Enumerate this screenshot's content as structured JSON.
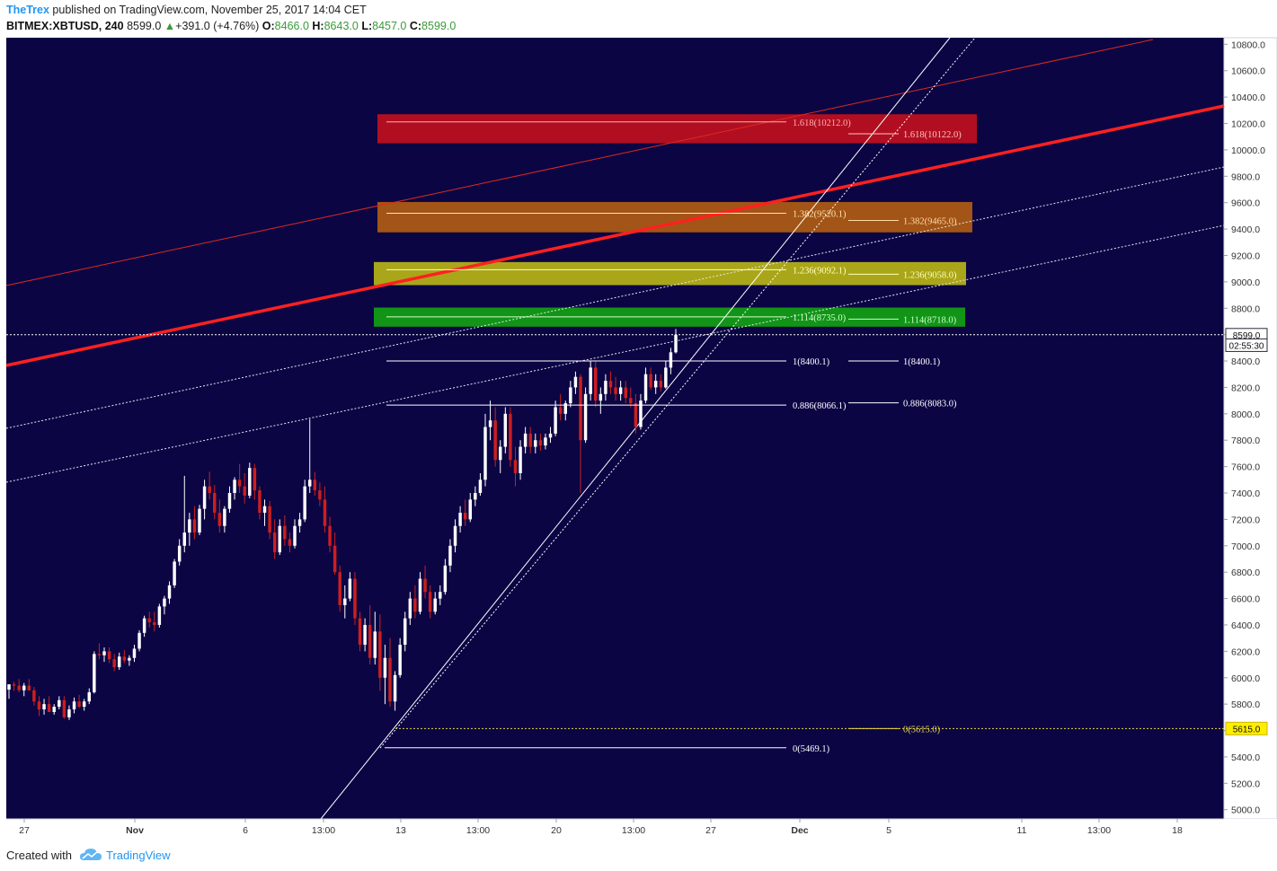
{
  "header": {
    "author": "TheTrex",
    "published_text": "published on TradingView.com, November 25, 2017 14:04 CET",
    "symbol": "BITMEX:XBTUSD, 240",
    "last": "8599.0",
    "change_arrow": "▲",
    "change": "+391.0 (+4.76%)",
    "open_label": "O:",
    "open": "8466.0",
    "high_label": "H:",
    "high": "8643.0",
    "low_label": "L:",
    "low": "8457.0",
    "close_label": "C:",
    "close": "8599.0"
  },
  "footer": {
    "created_with": "Created with",
    "brand": "TradingView",
    "logo_icon": "tradingview-cloud-icon"
  },
  "chart_data": {
    "type": "candlestick",
    "symbol": "BITMEX:XBTUSD",
    "interval": "240",
    "background_color": "#0b0544",
    "bull_color": "#ffffff",
    "bear_color": "#cc1f1f",
    "y_axis": {
      "position": "right",
      "ticks": [
        5000.0,
        5200.0,
        5400.0,
        5600.0,
        5800.0,
        6000.0,
        6200.0,
        6400.0,
        6600.0,
        6800.0,
        7000.0,
        7200.0,
        7400.0,
        7600.0,
        7800.0,
        8000.0,
        8200.0,
        8400.0,
        8600.0,
        8800.0,
        9000.0,
        9200.0,
        9400.0,
        9600.0,
        9800.0,
        10000.0,
        10200.0,
        10400.0,
        10600.0,
        10800.0
      ],
      "range": [
        4930,
        10850
      ]
    },
    "x_axis": {
      "ticks": [
        {
          "label": "27",
          "bold": false
        },
        {
          "label": "Nov",
          "bold": true
        },
        {
          "label": "6",
          "bold": false
        },
        {
          "label": "13:00",
          "bold": false
        },
        {
          "label": "13",
          "bold": false
        },
        {
          "label": "13:00",
          "bold": false
        },
        {
          "label": "20",
          "bold": false
        },
        {
          "label": "13:00",
          "bold": false
        },
        {
          "label": "27",
          "bold": false
        },
        {
          "label": "Dec",
          "bold": true
        },
        {
          "label": "5",
          "bold": false
        },
        {
          "label": "11",
          "bold": false
        },
        {
          "label": "13:00",
          "bold": false
        },
        {
          "label": "18",
          "bold": false
        }
      ]
    },
    "price_markers": [
      {
        "value": 8599.0,
        "label": "8599.0",
        "style": "dark"
      },
      {
        "value": 8520.0,
        "label": "02:55:30",
        "style": "dark"
      },
      {
        "value": 5615.0,
        "label": "5615.0",
        "style": "yellow"
      }
    ],
    "zones": [
      {
        "name": "1.618 zone",
        "top": 10270,
        "bottom": 10050,
        "color": "#c0101e"
      },
      {
        "name": "1.382 zone",
        "top": 9605,
        "bottom": 9375,
        "color": "#b05c12"
      },
      {
        "name": "1.236 zone",
        "top": 9150,
        "bottom": 8975,
        "color": "#b8b416"
      },
      {
        "name": "1.114 zone",
        "top": 8805,
        "bottom": 8660,
        "color": "#14a114"
      }
    ],
    "fib_labels_a": [
      {
        "label": "1.618(10212.0)",
        "value": 10212.0
      },
      {
        "label": "1.382(9520.1)",
        "value": 9520.1
      },
      {
        "label": "1.236(9092.1)",
        "value": 9092.1
      },
      {
        "label": "1.114(8735.0)",
        "value": 8735.0
      },
      {
        "label": "1(8400.1)",
        "value": 8400.1
      },
      {
        "label": "0.886(8066.1)",
        "value": 8066.1
      },
      {
        "label": "0(5469.1)",
        "value": 5469.1
      }
    ],
    "fib_labels_b": [
      {
        "label": "1.618(10122.0)",
        "value": 10122.0
      },
      {
        "label": "1.382(9465.0)",
        "value": 9465.0
      },
      {
        "label": "1.236(9058.0)",
        "value": 9058.0
      },
      {
        "label": "1.114(8718.0)",
        "value": 8718.0
      },
      {
        "label": "1(8400.1)",
        "value": 8400.1
      },
      {
        "label": "0.886(8083.0)",
        "value": 8083.0
      },
      {
        "label": "0(5615.0)",
        "value": 5615.0
      }
    ],
    "candles": [
      [
        5910,
        5950,
        5840,
        5950
      ],
      [
        5950,
        5970,
        5900,
        5940
      ],
      [
        5940,
        5990,
        5890,
        5905
      ],
      [
        5905,
        5960,
        5860,
        5940
      ],
      [
        5940,
        5990,
        5900,
        5905
      ],
      [
        5905,
        5930,
        5790,
        5820
      ],
      [
        5820,
        5860,
        5710,
        5760
      ],
      [
        5760,
        5840,
        5720,
        5800
      ],
      [
        5800,
        5860,
        5740,
        5740
      ],
      [
        5740,
        5800,
        5720,
        5780
      ],
      [
        5780,
        5860,
        5760,
        5830
      ],
      [
        5830,
        5860,
        5690,
        5700
      ],
      [
        5700,
        5790,
        5680,
        5760
      ],
      [
        5760,
        5850,
        5730,
        5820
      ],
      [
        5820,
        5870,
        5770,
        5780
      ],
      [
        5780,
        5840,
        5750,
        5820
      ],
      [
        5820,
        5920,
        5800,
        5890
      ],
      [
        5890,
        6200,
        5880,
        6180
      ],
      [
        6180,
        6260,
        6140,
        6170
      ],
      [
        6170,
        6230,
        6120,
        6200
      ],
      [
        6200,
        6230,
        6110,
        6140
      ],
      [
        6140,
        6180,
        6050,
        6080
      ],
      [
        6080,
        6190,
        6060,
        6160
      ],
      [
        6160,
        6210,
        6110,
        6130
      ],
      [
        6130,
        6170,
        6090,
        6150
      ],
      [
        6150,
        6250,
        6120,
        6220
      ],
      [
        6220,
        6360,
        6200,
        6340
      ],
      [
        6340,
        6470,
        6310,
        6450
      ],
      [
        6450,
        6500,
        6380,
        6420
      ],
      [
        6420,
        6500,
        6350,
        6400
      ],
      [
        6400,
        6560,
        6380,
        6540
      ],
      [
        6540,
        6620,
        6480,
        6600
      ],
      [
        6600,
        6730,
        6560,
        6700
      ],
      [
        6700,
        6900,
        6680,
        6880
      ],
      [
        6880,
        7050,
        6850,
        7000
      ],
      [
        7000,
        7530,
        6950,
        7100
      ],
      [
        7100,
        7250,
        7000,
        7200
      ],
      [
        7200,
        7300,
        7050,
        7100
      ],
      [
        7100,
        7310,
        7080,
        7280
      ],
      [
        7280,
        7500,
        7200,
        7450
      ],
      [
        7450,
        7560,
        7350,
        7400
      ],
      [
        7400,
        7460,
        7200,
        7250
      ],
      [
        7250,
        7350,
        7100,
        7150
      ],
      [
        7150,
        7300,
        7100,
        7280
      ],
      [
        7280,
        7450,
        7250,
        7400
      ],
      [
        7400,
        7520,
        7350,
        7500
      ],
      [
        7500,
        7620,
        7400,
        7450
      ],
      [
        7450,
        7550,
        7320,
        7380
      ],
      [
        7380,
        7630,
        7360,
        7590
      ],
      [
        7590,
        7620,
        7350,
        7420
      ],
      [
        7420,
        7450,
        7200,
        7250
      ],
      [
        7250,
        7350,
        7150,
        7300
      ],
      [
        7300,
        7340,
        7050,
        7100
      ],
      [
        7100,
        7200,
        6900,
        6950
      ],
      [
        6950,
        7200,
        6930,
        7150
      ],
      [
        7150,
        7230,
        7000,
        7050
      ],
      [
        7050,
        7100,
        6950,
        7000
      ],
      [
        7000,
        7200,
        6980,
        7150
      ],
      [
        7150,
        7250,
        7100,
        7200
      ],
      [
        7200,
        7500,
        7180,
        7450
      ],
      [
        7450,
        7960,
        7400,
        7500
      ],
      [
        7500,
        7560,
        7380,
        7420
      ],
      [
        7420,
        7480,
        7300,
        7350
      ],
      [
        7350,
        7450,
        7100,
        7150
      ],
      [
        7150,
        7220,
        6950,
        7000
      ],
      [
        7000,
        7100,
        6780,
        6800
      ],
      [
        6800,
        6850,
        6500,
        6550
      ],
      [
        6550,
        6700,
        6450,
        6600
      ],
      [
        6600,
        6800,
        6580,
        6750
      ],
      [
        6750,
        6800,
        6400,
        6450
      ],
      [
        6450,
        6500,
        6200,
        6250
      ],
      [
        6250,
        6450,
        6200,
        6400
      ],
      [
        6400,
        6550,
        6100,
        6150
      ],
      [
        6150,
        6500,
        6100,
        6350
      ],
      [
        6350,
        6480,
        5900,
        6000
      ],
      [
        6000,
        6250,
        5800,
        6150
      ],
      [
        6150,
        6300,
        5780,
        5820
      ],
      [
        5820,
        6050,
        5750,
        6020
      ],
      [
        6020,
        6300,
        6000,
        6250
      ],
      [
        6250,
        6500,
        6200,
        6450
      ],
      [
        6450,
        6650,
        6400,
        6600
      ],
      [
        6600,
        6700,
        6450,
        6500
      ],
      [
        6500,
        6800,
        6480,
        6750
      ],
      [
        6750,
        6850,
        6600,
        6650
      ],
      [
        6650,
        6700,
        6450,
        6500
      ],
      [
        6500,
        6650,
        6480,
        6600
      ],
      [
        6600,
        6700,
        6550,
        6650
      ],
      [
        6650,
        6900,
        6630,
        6850
      ],
      [
        6850,
        7050,
        6800,
        7000
      ],
      [
        7000,
        7200,
        6950,
        7150
      ],
      [
        7150,
        7300,
        7100,
        7250
      ],
      [
        7250,
        7350,
        7150,
        7200
      ],
      [
        7200,
        7400,
        7180,
        7350
      ],
      [
        7350,
        7450,
        7300,
        7400
      ],
      [
        7400,
        7550,
        7380,
        7500
      ],
      [
        7500,
        8000,
        7450,
        7900
      ],
      [
        7900,
        8100,
        7800,
        7950
      ],
      [
        7950,
        8050,
        7600,
        7650
      ],
      [
        7650,
        7800,
        7550,
        7750
      ],
      [
        7750,
        8050,
        7700,
        8000
      ],
      [
        8000,
        8050,
        7600,
        7650
      ],
      [
        7650,
        7750,
        7450,
        7550
      ],
      [
        7550,
        7800,
        7500,
        7750
      ],
      [
        7750,
        7900,
        7700,
        7850
      ],
      [
        7850,
        7900,
        7700,
        7750
      ],
      [
        7750,
        7850,
        7700,
        7800
      ],
      [
        7800,
        7850,
        7720,
        7760
      ],
      [
        7760,
        7850,
        7730,
        7820
      ],
      [
        7820,
        7900,
        7780,
        7850
      ],
      [
        7850,
        8100,
        7830,
        8050
      ],
      [
        8050,
        8150,
        7950,
        8000
      ],
      [
        8000,
        8100,
        7950,
        8080
      ],
      [
        8080,
        8250,
        8050,
        8200
      ],
      [
        8200,
        8320,
        8150,
        8280
      ],
      [
        8280,
        8300,
        7400,
        7800
      ],
      [
        7800,
        8200,
        7780,
        8150
      ],
      [
        8150,
        8400,
        8100,
        8350
      ],
      [
        8350,
        8400,
        8050,
        8100
      ],
      [
        8100,
        8200,
        8000,
        8150
      ],
      [
        8150,
        8300,
        8100,
        8250
      ],
      [
        8250,
        8320,
        8150,
        8200
      ],
      [
        8200,
        8280,
        8100,
        8150
      ],
      [
        8150,
        8250,
        8100,
        8200
      ],
      [
        8200,
        8250,
        8080,
        8120
      ],
      [
        8120,
        8200,
        8050,
        8080
      ],
      [
        8080,
        8150,
        7850,
        7900
      ],
      [
        7900,
        8150,
        7880,
        8100
      ],
      [
        8100,
        8350,
        8080,
        8300
      ],
      [
        8300,
        8350,
        8180,
        8200
      ],
      [
        8200,
        8300,
        8150,
        8250
      ],
      [
        8250,
        8300,
        8170,
        8200
      ],
      [
        8200,
        8400,
        8190,
        8350
      ],
      [
        8350,
        8500,
        8300,
        8466
      ],
      [
        8466,
        8643,
        8457,
        8599
      ]
    ]
  }
}
